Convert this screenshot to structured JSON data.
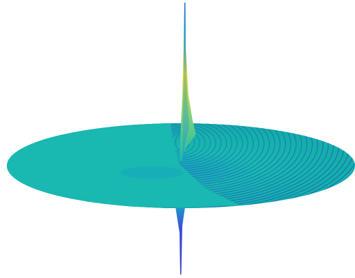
{
  "surface": {
    "colormap": "parula",
    "colors": {
      "disk_base": "#19b8b0",
      "disk_edge": "#12aaa8",
      "disk_center": "#17a6bd",
      "contour_line": "#1d63b8",
      "contour_light": "#2a8ad0",
      "spike_top": "#2064c8",
      "spike_mid": "#f2dc2a",
      "spike_low": "#7bd27a",
      "trough": "#3b4fd8",
      "trough_dark": "#3437c8",
      "background": "#ffffff"
    },
    "contour_ring_count": 34,
    "axes_visible": false
  }
}
